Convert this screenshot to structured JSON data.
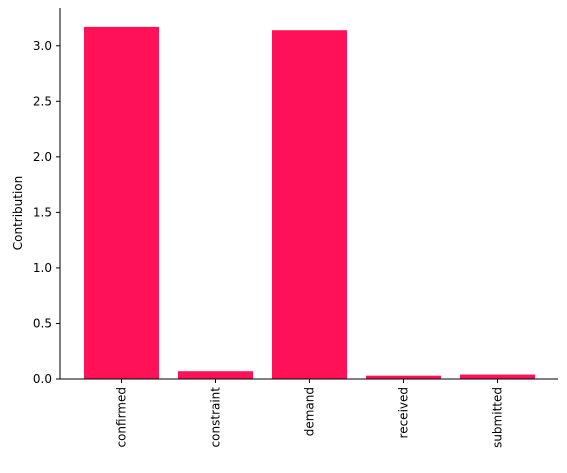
{
  "chart_data": {
    "type": "bar",
    "y_label": "Contribution",
    "categories": [
      "confirmed",
      "constraint",
      "demand",
      "received",
      "submitted"
    ],
    "values": [
      3.17,
      0.07,
      3.14,
      0.03,
      0.04
    ],
    "color": "#ff1157",
    "ylim": [
      0,
      3.34
    ],
    "yticks": [
      {
        "value": 0,
        "label": "0.0"
      },
      0.5,
      {
        "value": 1,
        "label": "1.0"
      },
      1.5,
      {
        "value": 2,
        "label": "2.0"
      },
      2.5,
      {
        "value": 3,
        "label": "3.0"
      }
    ],
    "grid": false
  }
}
